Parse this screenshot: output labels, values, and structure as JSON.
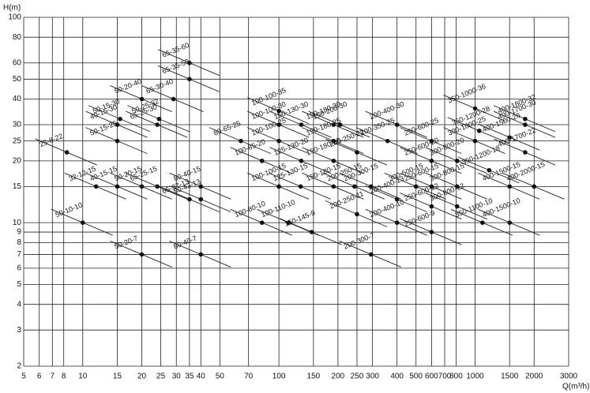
{
  "chart_data": {
    "type": "scatter",
    "y_label": "H(m)",
    "x_label": "Q(m³/h)",
    "log_x": true,
    "log_y": true,
    "grid": true,
    "color": "#111111",
    "xlim": [
      5,
      3000
    ],
    "ylim": [
      2,
      100
    ],
    "xticks": [
      5,
      6,
      7,
      8,
      10,
      15,
      20,
      25,
      30,
      35,
      40,
      50,
      70,
      100,
      150,
      200,
      250,
      300,
      400,
      500,
      600,
      700,
      800,
      1000,
      1500,
      2000,
      3000
    ],
    "yticks": [
      2,
      3,
      4,
      5,
      6,
      7,
      8,
      9,
      10,
      15,
      20,
      25,
      30,
      40,
      50,
      60,
      80,
      100
    ],
    "labels": [
      "25-8-22",
      "32-12-15",
      "50-10-10",
      "40-15-15",
      "50-15-25",
      "40-15-30",
      "50-15-30",
      "50-20-15",
      "50-20-40",
      "50-20-7",
      "65-25-15",
      "65-25-30",
      "50-25-32",
      "65-30-40",
      "65-35-50",
      "65-35-60",
      "65-37-13",
      "80-43-13",
      "80-40-15",
      "80-40-7",
      "80-65-25",
      "100-85-20",
      "100-100-15",
      "100-80-10",
      "100-100-25",
      "100-100-30",
      "100-100-35",
      "125-130-20",
      "125-130-15",
      "150-130-30",
      "100-110-10",
      "150-145-9",
      "150-180-15",
      "150-180-20",
      "150-180-25",
      "150-180-30",
      "150-200-30",
      "200-250-15",
      "200-250-11",
      "200-250-22",
      "200-300-15",
      "200-300-7",
      "200-350-25",
      "200-400-30",
      "200-400-13",
      "200-400-10",
      "250-600-25",
      "250-600-20",
      "250-600-15",
      "250-600-12",
      "250-600-9",
      "300-500-15",
      "300-800-15",
      "300-800-12",
      "300-800-20",
      "300-1000-25",
      "350-1000-36",
      "350-1200-28",
      "350-1200-18",
      "350-1100-10",
      "400-1500-26",
      "400-1500-15",
      "400-1500-10",
      "400-1800-32",
      "400-1700-30",
      "400-1700-22",
      "400-2000-15"
    ],
    "x": [
      8.3,
      11.7,
      10,
      15,
      15,
      15,
      15.5,
      20,
      20,
      20,
      24,
      24,
      24.5,
      29,
      35,
      35,
      35,
      40,
      40,
      40,
      64,
      82,
      100,
      82,
      100,
      100,
      100,
      130,
      129,
      130,
      112,
      147,
      190,
      190,
      190,
      190,
      205,
      243,
      250,
      250,
      295,
      295,
      358,
      400,
      400,
      400,
      600,
      600,
      600,
      600,
      600,
      500,
      810,
      810,
      810,
      1000,
      1000,
      1050,
      1180,
      1090,
      1500,
      1500,
      1500,
      1800,
      1800,
      1800,
      2000
    ],
    "values": [
      22,
      15,
      10,
      15,
      25,
      30,
      32,
      15,
      40,
      7,
      15,
      30,
      32,
      40,
      50,
      60,
      13,
      13,
      15,
      7,
      25,
      20,
      15,
      10,
      25,
      30,
      35,
      20,
      15,
      30,
      10,
      9,
      15,
      20,
      25,
      30,
      30,
      15,
      11,
      22,
      15,
      7,
      25,
      30,
      13,
      10,
      25,
      20,
      15,
      12,
      9,
      15,
      15,
      12,
      20,
      25,
      36,
      28,
      18,
      10,
      26,
      15,
      10,
      32,
      30,
      22,
      15
    ]
  }
}
